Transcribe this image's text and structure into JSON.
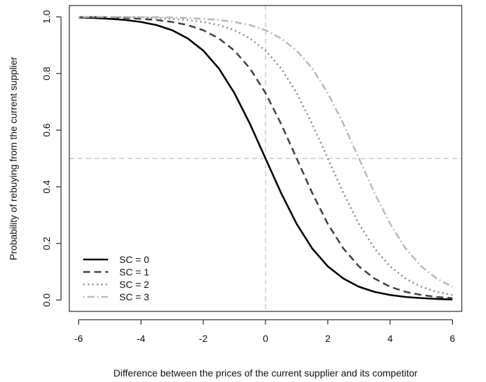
{
  "chart_data": {
    "type": "line",
    "title": "",
    "xlabel": "Difference between the prices of the current supplier and its competitor",
    "ylabel": "Probability of rebuying from the current supplier",
    "xlim": [
      -6.3,
      6.3
    ],
    "ylim": [
      -0.04,
      1.04
    ],
    "xticks": [
      "-6",
      "-4",
      "-2",
      "0",
      "2",
      "4",
      "6"
    ],
    "yticks": [
      "0.0",
      "0.2",
      "0.4",
      "0.6",
      "0.8",
      "1.0"
    ],
    "grid": false,
    "legend_position": "bottom-left",
    "reference_lines": {
      "x": 0,
      "y": 0.5
    },
    "series": [
      {
        "name": "SC = 0",
        "color": "#000000",
        "dash": "solid",
        "x": [
          -6,
          -5.5,
          -5,
          -4.5,
          -4,
          -3.5,
          -3,
          -2.5,
          -2,
          -1.5,
          -1,
          -0.5,
          0,
          0.5,
          1,
          1.5,
          2,
          2.5,
          3,
          3.5,
          4,
          4.5,
          5,
          5.5,
          6
        ],
        "y": [
          0.998,
          0.996,
          0.993,
          0.989,
          0.982,
          0.971,
          0.953,
          0.924,
          0.881,
          0.818,
          0.731,
          0.622,
          0.5,
          0.378,
          0.269,
          0.182,
          0.119,
          0.076,
          0.047,
          0.029,
          0.018,
          0.011,
          0.007,
          0.004,
          0.002
        ]
      },
      {
        "name": "SC = 1",
        "color": "#444444",
        "dash": "dashed",
        "x": [
          -6,
          -5.5,
          -5,
          -4.5,
          -4,
          -3.5,
          -3,
          -2.5,
          -2,
          -1.5,
          -1,
          -0.5,
          0,
          0.5,
          1,
          1.5,
          2,
          2.5,
          3,
          3.5,
          4,
          4.5,
          5,
          5.5,
          6
        ],
        "y": [
          0.999,
          0.999,
          0.998,
          0.996,
          0.993,
          0.989,
          0.982,
          0.971,
          0.953,
          0.924,
          0.881,
          0.818,
          0.731,
          0.622,
          0.5,
          0.378,
          0.269,
          0.182,
          0.119,
          0.076,
          0.047,
          0.029,
          0.018,
          0.011,
          0.007
        ]
      },
      {
        "name": "SC = 2",
        "color": "#888888",
        "dash": "dotted",
        "x": [
          -6,
          -5.5,
          -5,
          -4.5,
          -4,
          -3.5,
          -3,
          -2.5,
          -2,
          -1.5,
          -1,
          -0.5,
          0,
          0.5,
          1,
          1.5,
          2,
          2.5,
          3,
          3.5,
          4,
          4.5,
          5,
          5.5,
          6
        ],
        "y": [
          1.0,
          1.0,
          0.999,
          0.999,
          0.998,
          0.996,
          0.993,
          0.989,
          0.982,
          0.971,
          0.953,
          0.924,
          0.881,
          0.818,
          0.731,
          0.622,
          0.5,
          0.378,
          0.269,
          0.182,
          0.119,
          0.076,
          0.047,
          0.029,
          0.018
        ]
      },
      {
        "name": "SC = 3",
        "color": "#bbbbbb",
        "dash": "dashdot",
        "x": [
          -6,
          -5.5,
          -5,
          -4.5,
          -4,
          -3.5,
          -3,
          -2.5,
          -2,
          -1.5,
          -1,
          -0.5,
          0,
          0.5,
          1,
          1.5,
          2,
          2.5,
          3,
          3.5,
          4,
          4.5,
          5,
          5.5,
          6
        ],
        "y": [
          1.0,
          1.0,
          1.0,
          1.0,
          0.999,
          0.999,
          0.998,
          0.996,
          0.993,
          0.989,
          0.982,
          0.971,
          0.953,
          0.924,
          0.881,
          0.818,
          0.731,
          0.622,
          0.5,
          0.378,
          0.269,
          0.182,
          0.119,
          0.076,
          0.047
        ]
      }
    ]
  }
}
